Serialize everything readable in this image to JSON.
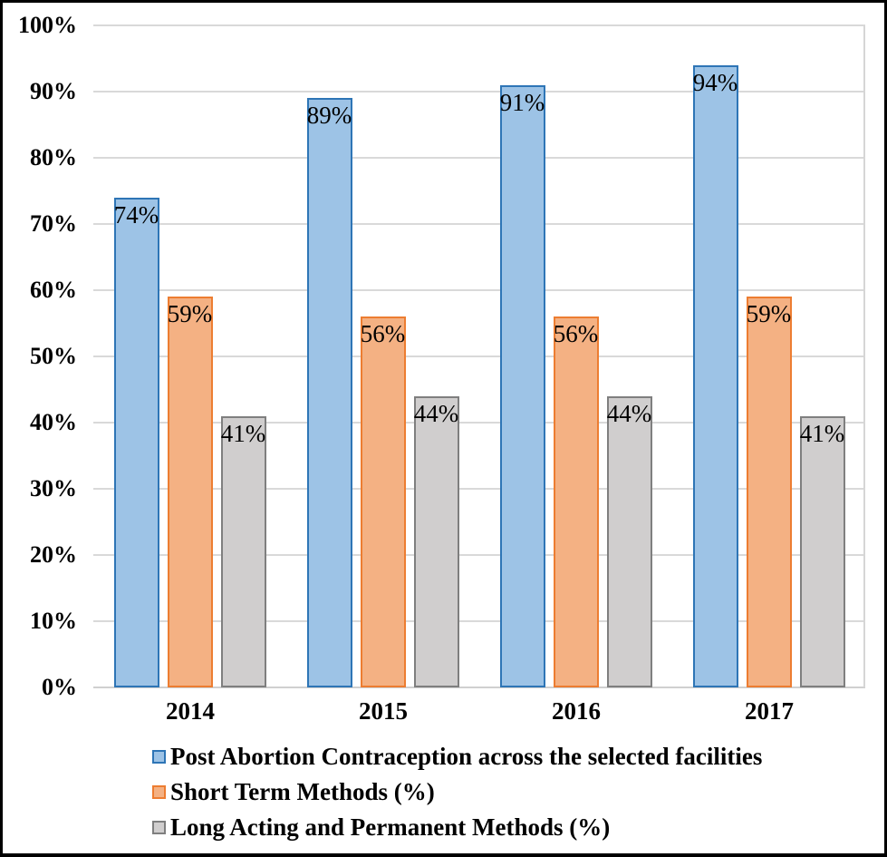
{
  "chart_data": {
    "type": "bar",
    "title": "",
    "categories": [
      "2014",
      "2015",
      "2016",
      "2017"
    ],
    "series": [
      {
        "name": "Post Abortion Contraception across the selected facilities",
        "values": [
          74,
          89,
          91,
          94
        ],
        "data_labels": [
          "74%",
          "89%",
          "91%",
          "94%"
        ],
        "fill": "#9DC3E6",
        "border": "#2E75B6"
      },
      {
        "name": "Short Term Methods (%)",
        "values": [
          59,
          56,
          56,
          59
        ],
        "data_labels": [
          "59%",
          "56%",
          "56%",
          "59%"
        ],
        "fill": "#F4B183",
        "border": "#ED7D31"
      },
      {
        "name": "Long Acting and Permanent Methods (%)",
        "values": [
          41,
          44,
          44,
          41
        ],
        "data_labels": [
          "41%",
          "44%",
          "44%",
          "41%"
        ],
        "fill": "#D0CECE",
        "border": "#7F7F7F"
      }
    ],
    "ylim": [
      0,
      100
    ],
    "ytick_step": 10,
    "ytick_labels": [
      "0%",
      "10%",
      "20%",
      "30%",
      "40%",
      "50%",
      "60%",
      "70%",
      "80%",
      "90%",
      "100%"
    ],
    "grid": true,
    "legend_position": "bottom-left",
    "data_label_position": "inside-top"
  },
  "style_colors": {
    "gridline": "#D9D9D9",
    "axis_line": "#D0D0D0",
    "plot_right_border": "#D6D6D6",
    "text": "#000000",
    "frame_border": "#000000",
    "background": "#FFFFFF"
  }
}
